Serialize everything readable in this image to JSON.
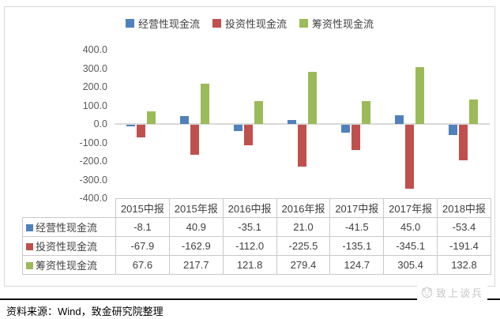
{
  "chart_data": {
    "type": "bar",
    "categories": [
      "2015中报",
      "2015年报",
      "2016中报",
      "2016年报",
      "2017中报",
      "2017年报",
      "2018中报"
    ],
    "series": [
      {
        "name": "经营性现金流",
        "color": "#4f81bd",
        "values": [
          -8.1,
          40.9,
          -35.1,
          21.0,
          -41.5,
          45.0,
          -53.4
        ]
      },
      {
        "name": "投资性现金流",
        "color": "#c0504d",
        "values": [
          -67.9,
          -162.9,
          -112.0,
          -225.5,
          -135.1,
          -345.1,
          -191.4
        ]
      },
      {
        "name": "筹资性现金流",
        "color": "#9bbb59",
        "values": [
          67.6,
          217.7,
          121.8,
          279.4,
          124.7,
          305.4,
          132.8
        ]
      }
    ],
    "ylim": [
      -400,
      400
    ],
    "ytick_step": 100,
    "yticks": [
      "400.0",
      "300.0",
      "200.0",
      "100.0",
      "0.0",
      "-100.0",
      "-200.0",
      "-300.0",
      "-400.0"
    ],
    "legend_position": "top",
    "grid": false,
    "zero_line_color": "#d9d9d9",
    "data_table_shown": true
  },
  "footer": {
    "source_text": "资料来源：Wind，致金研究院整理"
  },
  "watermark": {
    "text": "致上谈兵"
  }
}
